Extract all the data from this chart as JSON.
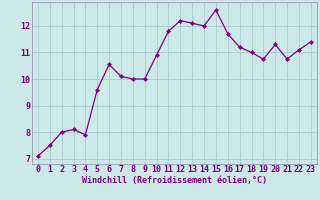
{
  "x": [
    0,
    1,
    2,
    3,
    4,
    5,
    6,
    7,
    8,
    9,
    10,
    11,
    12,
    13,
    14,
    15,
    16,
    17,
    18,
    19,
    20,
    21,
    22,
    23
  ],
  "y": [
    7.1,
    7.5,
    8.0,
    8.1,
    7.9,
    9.6,
    10.55,
    10.1,
    10.0,
    10.0,
    10.9,
    11.8,
    12.2,
    12.1,
    12.0,
    12.6,
    11.7,
    11.2,
    11.0,
    10.75,
    11.3,
    10.75,
    11.1,
    11.4
  ],
  "line_color": "#800080",
  "marker": "D",
  "markersize": 2.0,
  "linewidth": 0.9,
  "bg_color": "#cce8e8",
  "grid_color": "#aacccc",
  "spine_color": "#8888aa",
  "xlabel": "Windchill (Refroidissement éolien,°C)",
  "xlabel_color": "#800080",
  "xlabel_fontsize": 6.0,
  "tick_color": "#800080",
  "tick_fontsize": 6.0,
  "ylim": [
    6.8,
    12.9
  ],
  "xlim": [
    -0.5,
    23.5
  ],
  "yticks": [
    7,
    8,
    9,
    10,
    11,
    12
  ],
  "xticks": [
    0,
    1,
    2,
    3,
    4,
    5,
    6,
    7,
    8,
    9,
    10,
    11,
    12,
    13,
    14,
    15,
    16,
    17,
    18,
    19,
    20,
    21,
    22,
    23
  ]
}
